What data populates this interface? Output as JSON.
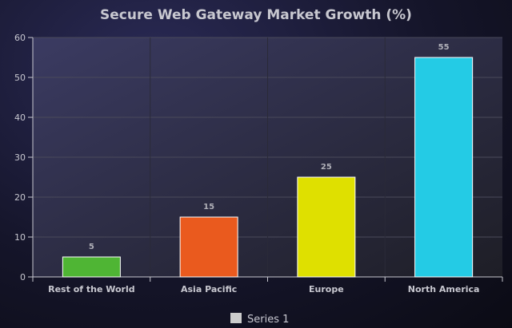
{
  "chart_data": {
    "type": "bar",
    "title": "Secure Web Gateway Market Growth (%)",
    "categories": [
      "Rest of the World",
      "Asia Pacific",
      "Europe",
      "North America"
    ],
    "series": [
      {
        "name": "Series 1",
        "values": [
          5,
          15,
          25,
          55
        ],
        "colors": [
          "#4fb534",
          "#ea5a1e",
          "#dfe000",
          "#24cbe5"
        ]
      }
    ],
    "yticks": [
      0,
      10,
      20,
      30,
      40,
      50,
      60
    ],
    "ylim": [
      0,
      60
    ],
    "xlabel": "",
    "ylabel": "",
    "grid": true,
    "legend": "bottom-center",
    "legend_swatch_color": "#cccccc"
  }
}
